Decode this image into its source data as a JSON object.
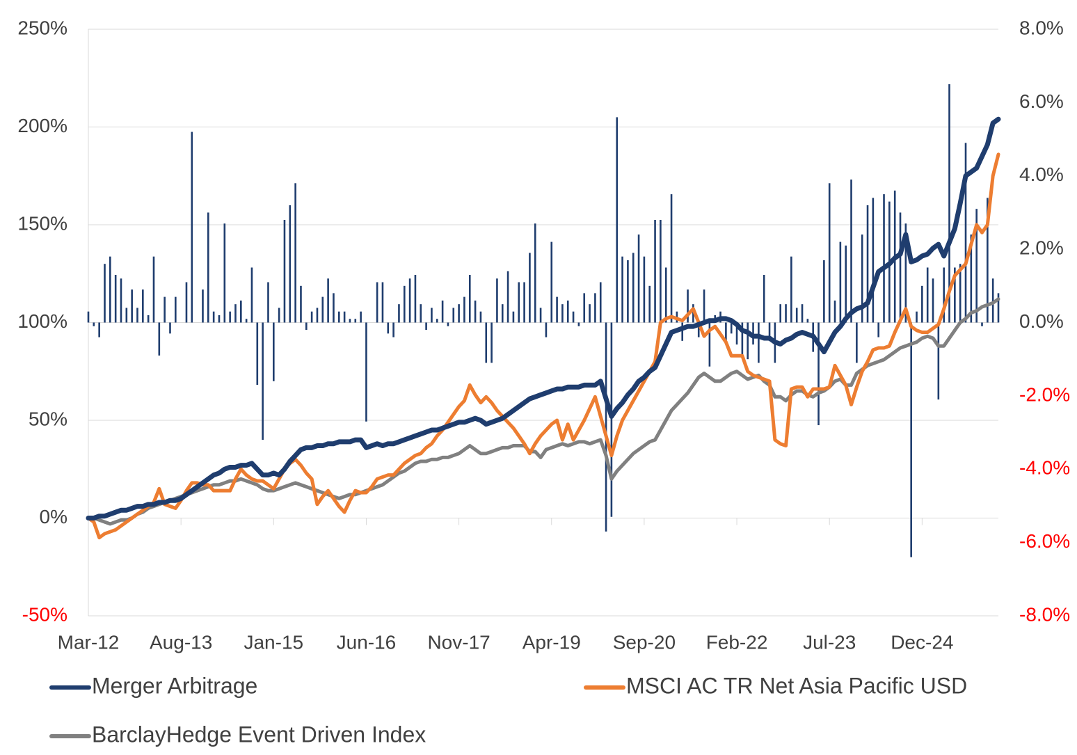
{
  "chart_data": {
    "type": "line",
    "categories": [
      "Mar-12",
      null,
      null,
      null,
      null,
      null,
      null,
      null,
      null,
      null,
      null,
      null,
      null,
      null,
      null,
      null,
      null,
      "Aug-13",
      null,
      null,
      null,
      null,
      null,
      null,
      null,
      null,
      null,
      null,
      null,
      null,
      null,
      null,
      null,
      null,
      "Jan-15",
      null,
      null,
      null,
      null,
      null,
      null,
      null,
      null,
      null,
      null,
      null,
      null,
      null,
      null,
      null,
      null,
      "Jun-16",
      null,
      null,
      null,
      null,
      null,
      null,
      null,
      null,
      null,
      null,
      null,
      null,
      null,
      null,
      null,
      null,
      "Nov-17",
      null,
      null,
      null,
      null,
      null,
      null,
      null,
      null,
      null,
      null,
      null,
      null,
      null,
      null,
      null,
      null,
      "Apr-19",
      null,
      null,
      null,
      null,
      null,
      null,
      null,
      null,
      null,
      null,
      null,
      null,
      null,
      null,
      null,
      null,
      "Sep-20",
      null,
      null,
      null,
      null,
      null,
      null,
      null,
      null,
      null,
      null,
      null,
      null,
      null,
      null,
      null,
      null,
      "Feb-22",
      null,
      null,
      null,
      null,
      null,
      null,
      null,
      null,
      null,
      null,
      null,
      null,
      null,
      null,
      null,
      null,
      "Jul-23",
      null,
      null,
      null,
      null,
      null,
      null,
      null,
      null,
      null,
      null,
      null,
      null,
      null,
      null,
      null,
      null,
      "Dec-24",
      null,
      null,
      null,
      null,
      null,
      null,
      null,
      null,
      null,
      null,
      null,
      null,
      null,
      null
    ],
    "series": [
      {
        "name": "Merger Arbitrage",
        "color": "#1f3d6e",
        "values": [
          0,
          0,
          1,
          1,
          2,
          3,
          4,
          4,
          5,
          6,
          6,
          7,
          7,
          8,
          8,
          9,
          9,
          10,
          12,
          14,
          16,
          18,
          20,
          22,
          23,
          25,
          26,
          26,
          27,
          27,
          28,
          25,
          22,
          22,
          23,
          22,
          25,
          29,
          32,
          35,
          36,
          36,
          37,
          37,
          38,
          38,
          39,
          39,
          39,
          40,
          40,
          36,
          37,
          38,
          37,
          38,
          38,
          39,
          40,
          41,
          42,
          43,
          44,
          45,
          45,
          46,
          47,
          48,
          49,
          49,
          50,
          51,
          50,
          48,
          49,
          50,
          51,
          53,
          55,
          57,
          59,
          61,
          62,
          63,
          64,
          65,
          66,
          66,
          67,
          67,
          67,
          68,
          68,
          68,
          70,
          61,
          52,
          56,
          59,
          63,
          66,
          70,
          72,
          75,
          77,
          83,
          89,
          95,
          96,
          97,
          98,
          98,
          99,
          100,
          101,
          101,
          102,
          102,
          101,
          99,
          96,
          95,
          93,
          93,
          92,
          92,
          90,
          89,
          91,
          92,
          94,
          95,
          94,
          93,
          89,
          85,
          90,
          95,
          98,
          102,
          105,
          107,
          108,
          110,
          118,
          126,
          128,
          130,
          133,
          135,
          145,
          131,
          132,
          134,
          135,
          138,
          140,
          134,
          141,
          148,
          161,
          175,
          177,
          179,
          185,
          191,
          202,
          204
        ]
      },
      {
        "name": "MSCI AC TR Net Asia Pacific USD",
        "color": "#ed7d31",
        "values": [
          0,
          -2,
          -10,
          -8,
          -7,
          -6,
          -4,
          -2,
          0,
          2,
          4,
          6,
          8,
          15,
          7,
          6,
          5,
          9,
          14,
          18,
          18,
          17,
          17,
          14,
          14,
          14,
          14,
          20,
          25,
          22,
          20,
          19,
          19,
          17,
          15,
          20,
          25,
          28,
          30,
          27,
          23,
          20,
          7,
          11,
          14,
          10,
          6,
          3,
          9,
          14,
          13,
          13,
          16,
          20,
          21,
          22,
          22,
          25,
          28,
          30,
          32,
          33,
          36,
          38,
          42,
          45,
          49,
          53,
          57,
          60,
          68,
          63,
          59,
          62,
          59,
          55,
          52,
          49,
          46,
          42,
          38,
          33,
          38,
          42,
          45,
          48,
          50,
          40,
          48,
          40,
          45,
          50,
          56,
          62,
          52,
          42,
          32,
          42,
          50,
          55,
          60,
          65,
          70,
          75,
          80,
          100,
          102,
          103,
          102,
          101,
          104,
          107,
          100,
          93,
          96,
          98,
          94,
          90,
          83,
          83,
          83,
          75,
          73,
          72,
          71,
          70,
          40,
          38,
          37,
          66,
          67,
          67,
          62,
          66,
          66,
          66,
          67,
          78,
          73,
          68,
          58,
          67,
          75,
          80,
          86,
          87,
          87,
          88,
          95,
          101,
          107,
          98,
          96,
          95,
          95,
          97,
          99,
          107,
          116,
          124,
          127,
          130,
          140,
          150,
          146,
          150,
          175,
          186
        ]
      },
      {
        "name": "BarclayHedge Event Driven Index",
        "color": "#808080",
        "values": [
          0,
          0,
          -1,
          -2,
          -3,
          -2,
          -1,
          -1,
          0,
          2,
          3,
          5,
          6,
          7,
          8,
          9,
          10,
          11,
          12,
          13,
          14,
          15,
          16,
          17,
          17,
          18,
          19,
          19,
          20,
          19,
          18,
          17,
          15,
          14,
          14,
          15,
          16,
          17,
          18,
          17,
          16,
          15,
          14,
          13,
          12,
          11,
          10,
          11,
          12,
          12,
          13,
          14,
          15,
          16,
          17,
          19,
          21,
          23,
          24,
          26,
          28,
          29,
          29,
          30,
          30,
          31,
          31,
          32,
          33,
          35,
          37,
          35,
          33,
          33,
          34,
          35,
          36,
          36,
          37,
          37,
          37,
          34,
          34,
          31,
          35,
          36,
          37,
          38,
          37,
          38,
          39,
          39,
          38,
          39,
          40,
          32,
          20,
          24,
          27,
          30,
          33,
          35,
          37,
          39,
          40,
          45,
          50,
          55,
          58,
          61,
          64,
          68,
          72,
          74,
          72,
          70,
          70,
          72,
          74,
          75,
          73,
          71,
          72,
          73,
          70,
          68,
          62,
          62,
          60,
          63,
          65,
          65,
          63,
          62,
          64,
          65,
          67,
          70,
          71,
          68,
          68,
          74,
          76,
          78,
          79,
          80,
          81,
          83,
          85,
          87,
          88,
          89,
          90,
          92,
          93,
          92,
          88,
          88,
          92,
          96,
          100,
          102,
          105,
          106,
          108,
          109,
          110,
          112
        ]
      }
    ],
    "bars": {
      "color": "#1f3d6e",
      "axis": "y2",
      "values": [
        0.3,
        -0.1,
        -0.4,
        1.6,
        1.8,
        1.3,
        1.2,
        0.4,
        0.9,
        0.4,
        0.9,
        0.2,
        1.8,
        -0.9,
        0.7,
        -0.3,
        0.7,
        0,
        1.1,
        5.2,
        0,
        0.9,
        3.0,
        0.3,
        0.2,
        2.7,
        0.3,
        0.5,
        0.6,
        0.1,
        1.5,
        -1.7,
        -3.2,
        1.1,
        -1.6,
        0.4,
        2.8,
        3.2,
        3.8,
        1.0,
        -0.2,
        0.3,
        0.4,
        0.7,
        1.2,
        0.8,
        0.3,
        0.3,
        0.1,
        0.1,
        0.3,
        -2.7,
        0,
        1.1,
        1.1,
        -0.3,
        -0.4,
        0.5,
        1.0,
        1.2,
        1.3,
        0.5,
        -0.2,
        0.4,
        0.1,
        0.6,
        -0.1,
        0.4,
        0.5,
        0.7,
        1.3,
        0.6,
        0.3,
        -1.1,
        -1.1,
        1.2,
        0.5,
        1.4,
        0.3,
        1.1,
        1.1,
        1.9,
        2.7,
        0.4,
        -0.4,
        2.2,
        0.7,
        0.5,
        0.6,
        0.3,
        -0.1,
        0.8,
        0.5,
        0.8,
        1.1,
        -5.7,
        -5.3,
        5.6,
        1.8,
        1.7,
        1.9,
        2.4,
        1.8,
        1.0,
        2.8,
        2.8,
        1.5,
        3.5,
        0.3,
        -0.5,
        0.9,
        0.5,
        -0.4,
        0.9,
        -1.2,
        0.2,
        0.3,
        -0.6,
        -0.3,
        -0.6,
        -0.9,
        -1.0,
        -0.6,
        -1.1,
        1.3,
        -0.5,
        -1.1,
        0.5,
        0.5,
        1.8,
        0.4,
        0.5,
        0.1,
        -0.8,
        -2.8,
        1.7,
        3.8,
        0.6,
        2.2,
        2.1,
        3.9,
        -1.1,
        2.4,
        3.2,
        3.4,
        -0.4,
        3.5,
        3.3,
        3.6,
        3.0,
        2.7,
        -6.4,
        0.3,
        1.0,
        1.5,
        1.2,
        -2.1,
        1.5,
        6.5,
        1.5,
        1.6,
        4.9,
        2.4,
        3.1,
        -0.1,
        3.4,
        1.2,
        0.8
      ]
    },
    "ylim": [
      -50,
      250
    ],
    "yticks": [
      {
        "value": -50,
        "label": "-50%"
      },
      {
        "value": 0,
        "label": "0%"
      },
      {
        "value": 50,
        "label": "50%"
      },
      {
        "value": 100,
        "label": "100%"
      },
      {
        "value": 150,
        "label": "150%"
      },
      {
        "value": 200,
        "label": "200%"
      },
      {
        "value": 250,
        "label": "250%"
      }
    ],
    "y2lim": [
      -8,
      8
    ],
    "y2ticks": [
      {
        "value": -8,
        "label": "-8.0%"
      },
      {
        "value": -6,
        "label": "-6.0%"
      },
      {
        "value": -4,
        "label": "-4.0%"
      },
      {
        "value": -2,
        "label": "-2.0%"
      },
      {
        "value": 0,
        "label": "0.0%"
      },
      {
        "value": 2,
        "label": "2.0%"
      },
      {
        "value": 4,
        "label": "4.0%"
      },
      {
        "value": 6,
        "label": "6.0%"
      },
      {
        "value": 8,
        "label": "8.0%"
      }
    ],
    "grid": true,
    "negative_label_color": "#ff0000",
    "legend": "bottom"
  }
}
